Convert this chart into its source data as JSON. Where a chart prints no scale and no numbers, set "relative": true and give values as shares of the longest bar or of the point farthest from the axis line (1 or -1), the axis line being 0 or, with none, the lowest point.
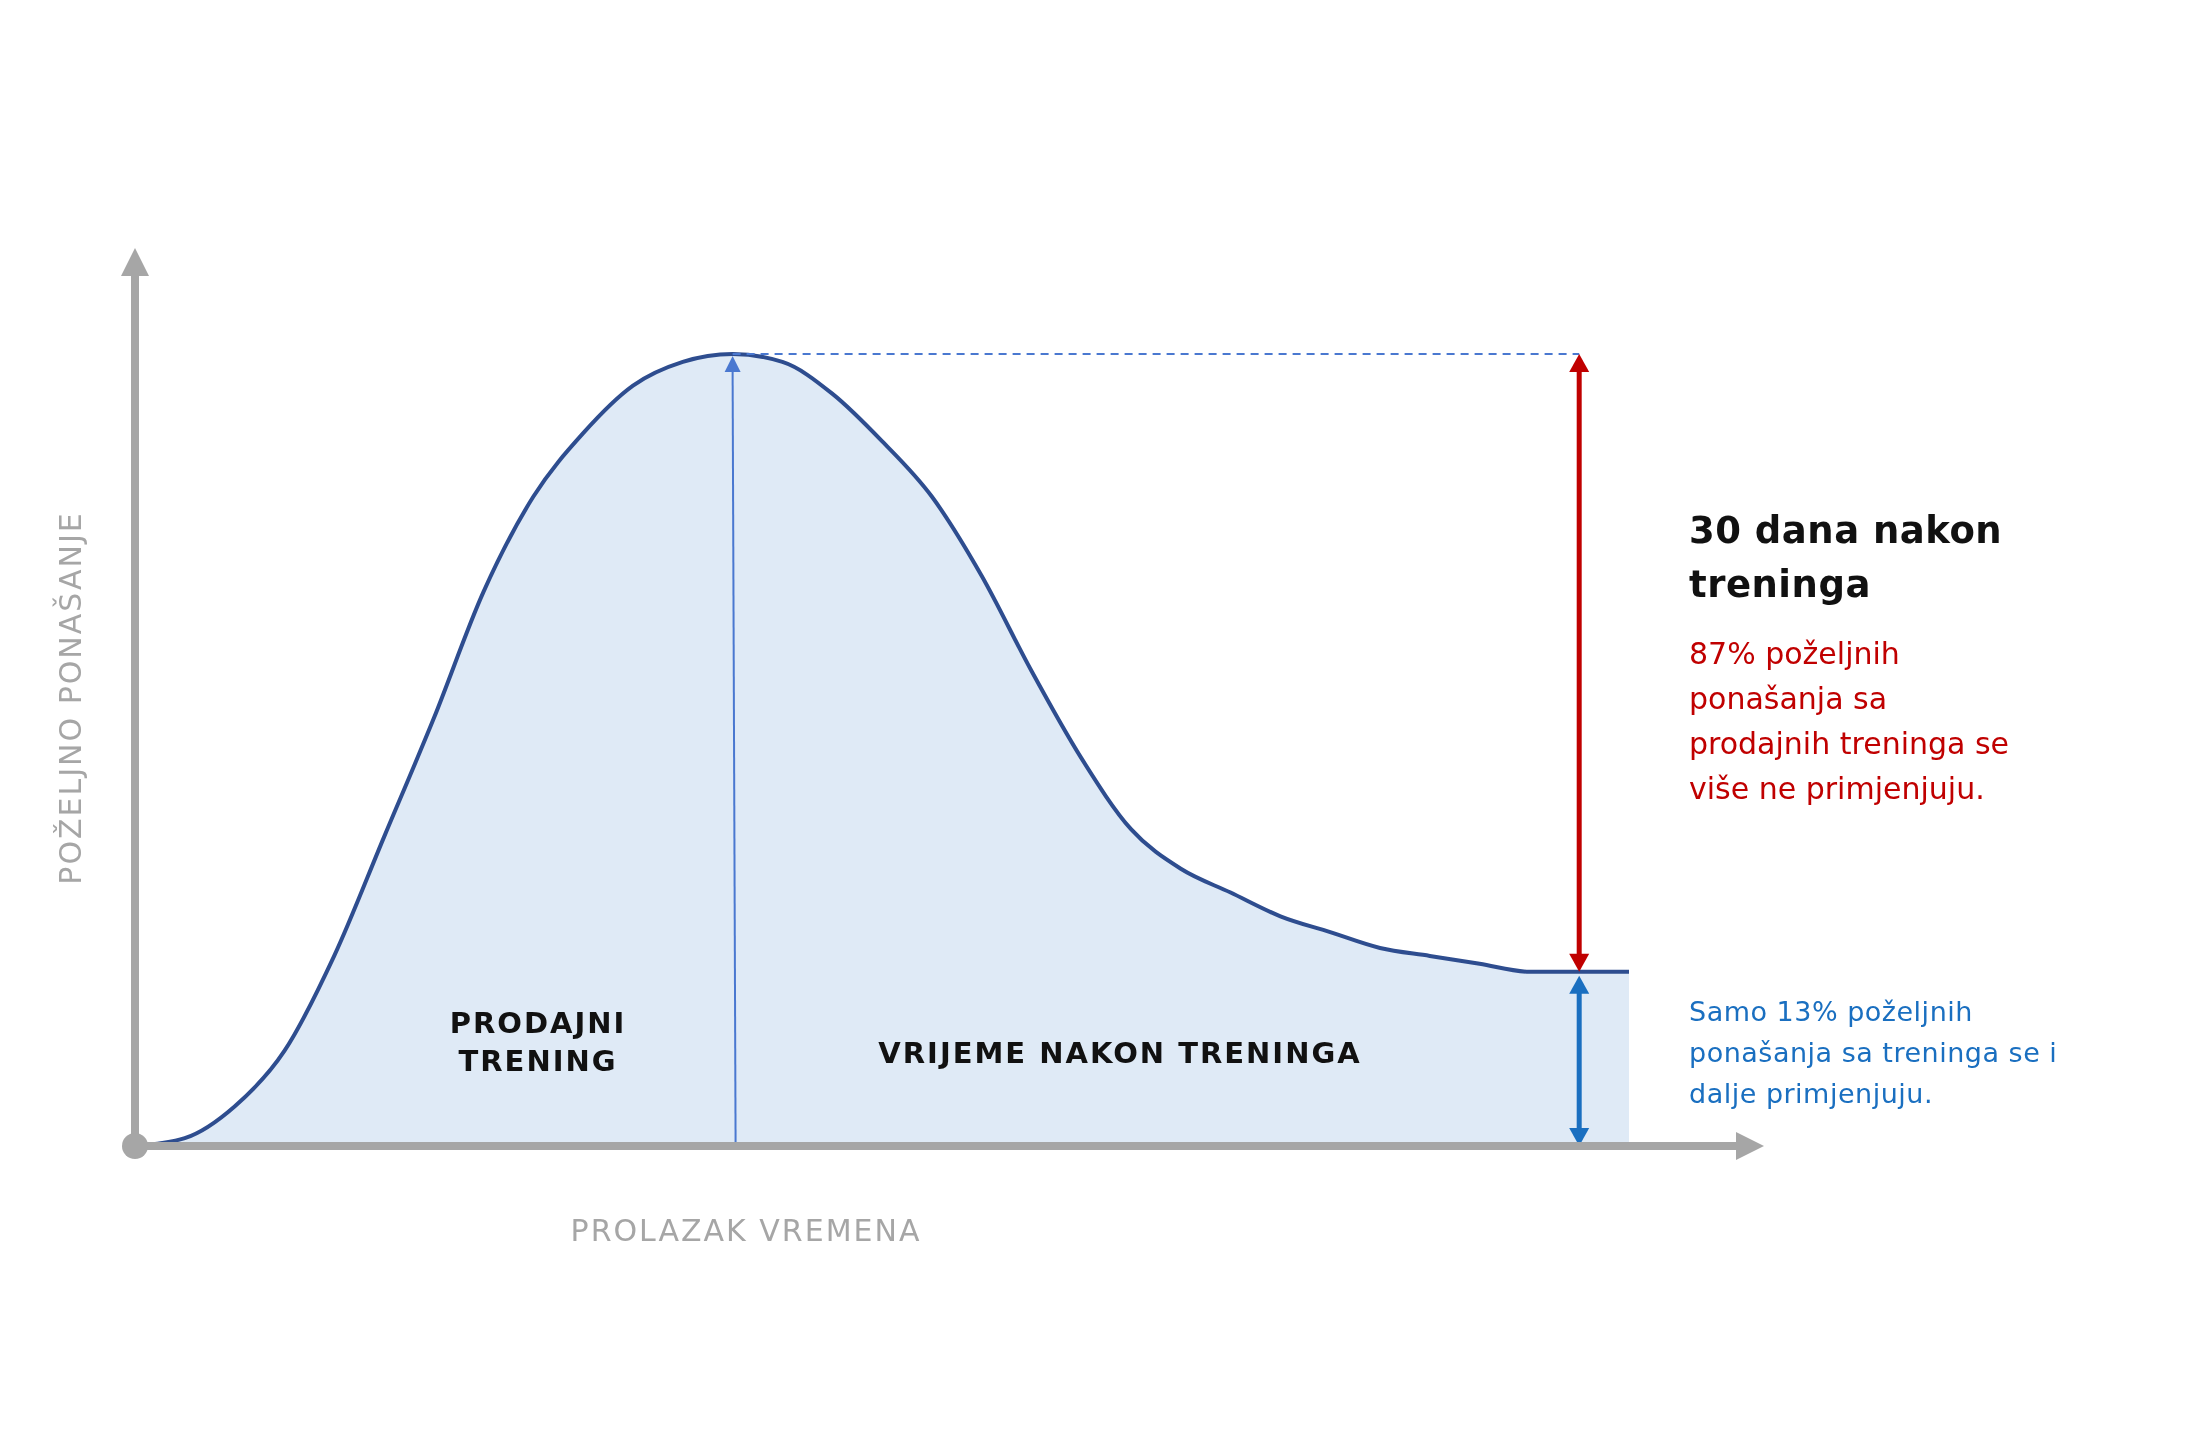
{
  "chart_data": {
    "type": "area",
    "relative": true,
    "xlabel": "PROLAZAK VREMENA",
    "ylabel": "POŽELJNO PONAŠANJE",
    "categories": [
      null,
      null,
      null,
      null,
      null,
      null,
      null,
      null,
      null,
      null,
      null,
      null,
      null,
      null,
      null,
      null,
      null,
      null,
      null,
      null,
      null,
      null,
      null,
      null,
      null,
      null,
      null,
      null,
      null,
      null,
      null
    ],
    "series": [
      {
        "color": "#2e4d8f",
        "values": [
          0,
          0.01,
          0.05,
          0.12,
          0.24,
          0.39,
          0.54,
          0.7,
          0.82,
          0.9,
          0.96,
          0.99,
          1,
          0.99,
          0.95,
          0.89,
          0.82,
          0.72,
          0.6,
          0.49,
          0.4,
          0.35,
          0.32,
          0.29,
          0.27,
          0.25,
          0.24,
          0.23,
          0.22,
          0.22,
          0.22
        ]
      }
    ],
    "ref_lines": [
      {
        "axis": "y",
        "value": 1,
        "color": "#4a78d0",
        "line_style": "dashed"
      }
    ],
    "annotations": [
      "PRODAJNI TRENING",
      "VRIJEME NAKON TRENINGA",
      "30 dana nakon treninga",
      "87% poželjnih ponašanja sa prodajnih treninga se više ne primjenjuju.",
      "Samo 13% poželjnih ponašanja sa treninga se i dalje primjenjuju."
    ],
    "line_style": "solid"
  }
}
